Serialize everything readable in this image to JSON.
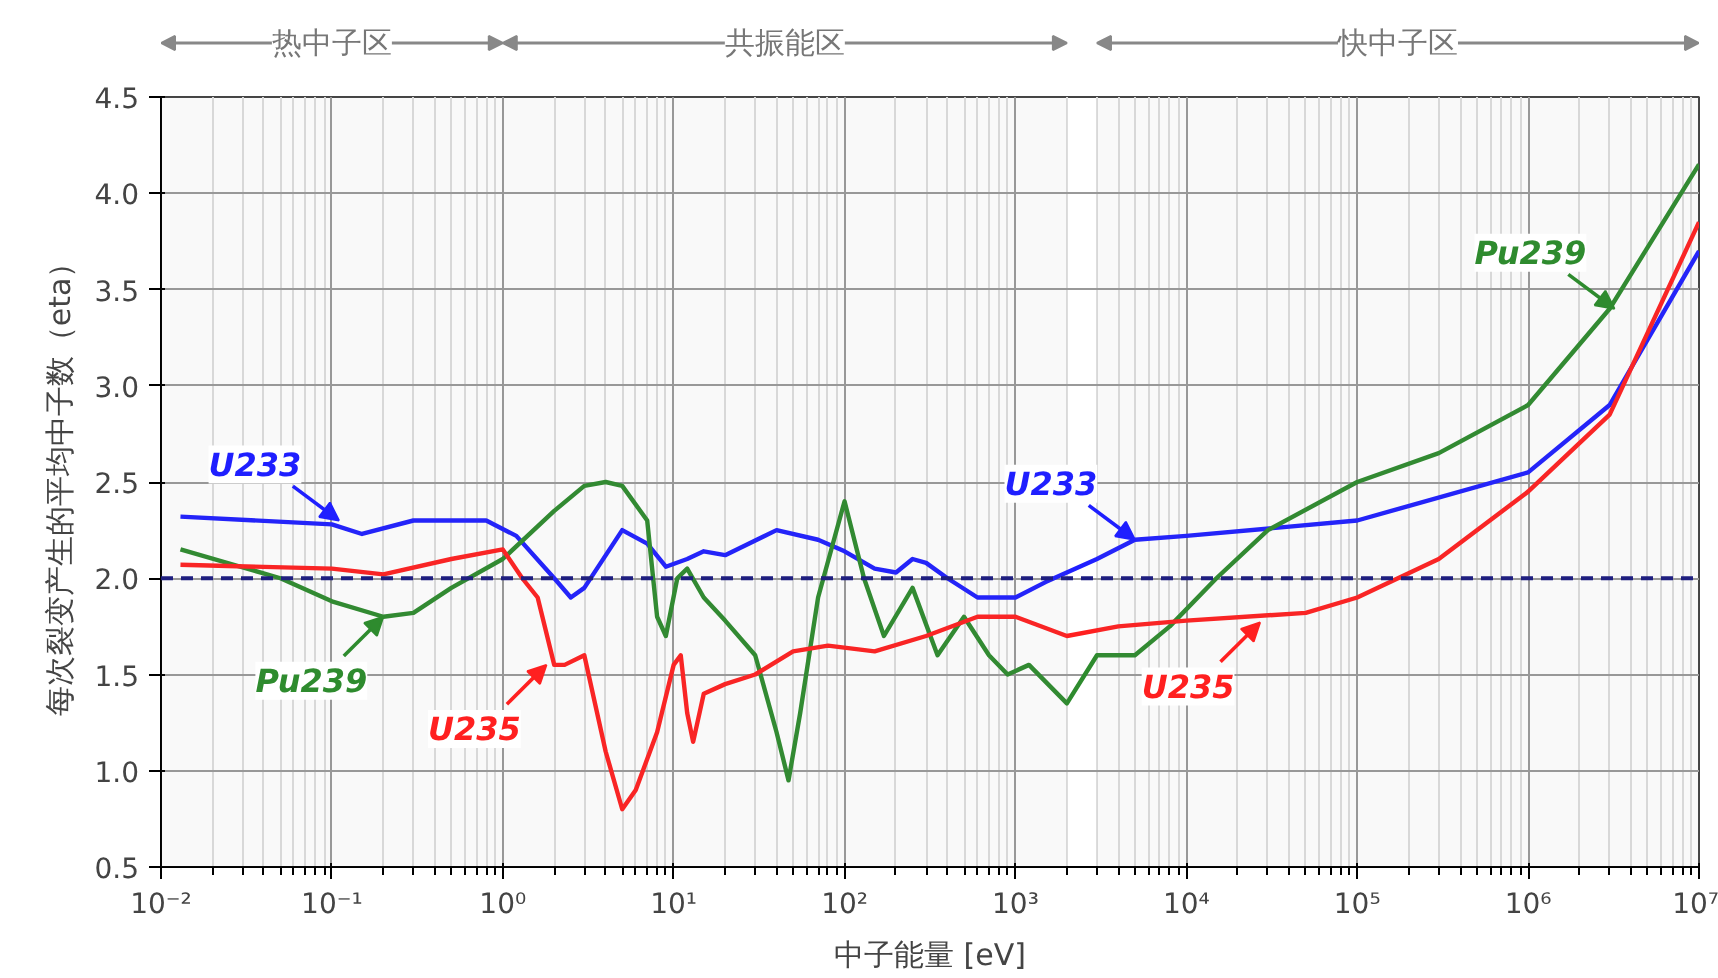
{
  "chart_data": {
    "type": "line",
    "xlabel": "中子能量 [eV]",
    "ylabel": "每次裂变产生的平均中子数（eta）",
    "log": "x",
    "grid": true,
    "line_style": "solid",
    "marker": "none",
    "xlim": [
      0.01,
      10000000
    ],
    "ylim": [
      0.5,
      4.5
    ],
    "xticks": [
      {
        "value": 0.01,
        "label": "10⁻²"
      },
      {
        "value": 0.1,
        "label": "10⁻¹"
      },
      {
        "value": 1,
        "label": "10⁰"
      },
      {
        "value": 10,
        "label": "10¹"
      },
      {
        "value": 100,
        "label": "10²"
      },
      {
        "value": 1000,
        "label": "10³"
      },
      {
        "value": 10000,
        "label": "10⁴"
      },
      {
        "value": 100000,
        "label": "10⁵"
      },
      {
        "value": 1000000,
        "label": "10⁶"
      },
      {
        "value": 10000000,
        "label": "10⁷"
      }
    ],
    "yticks": [
      {
        "value": 0.5,
        "label": "0.5"
      },
      {
        "value": 1.0,
        "label": "1.0"
      },
      {
        "value": 1.5,
        "label": "1.5"
      },
      {
        "value": 2.0,
        "label": "2.0"
      },
      {
        "value": 2.5,
        "label": "2.5"
      },
      {
        "value": 3.0,
        "label": "3.0"
      },
      {
        "value": 3.5,
        "label": "3.5"
      },
      {
        "value": 4.0,
        "label": "4.0"
      },
      {
        "value": 4.5,
        "label": "4.5"
      }
    ],
    "series": [
      {
        "color": "#1f1fff",
        "x": [
          0.013,
          0.1,
          0.15,
          0.3,
          0.8,
          1.2,
          2,
          2.5,
          3,
          5,
          7,
          9,
          12,
          15,
          20,
          40,
          70,
          100,
          150,
          200,
          250,
          300,
          400,
          600,
          1000,
          1500,
          3000,
          5000,
          10000,
          100000,
          1000000,
          3000000,
          10000000
        ],
        "values": [
          2.32,
          2.28,
          2.23,
          2.3,
          2.3,
          2.22,
          2.0,
          1.9,
          1.95,
          2.25,
          2.18,
          2.06,
          2.1,
          2.14,
          2.12,
          2.25,
          2.2,
          2.14,
          2.05,
          2.03,
          2.1,
          2.08,
          2.0,
          1.9,
          1.9,
          1.98,
          2.1,
          2.2,
          2.22,
          2.3,
          2.55,
          2.9,
          3.7
        ]
      },
      {
        "color": "#2e8b2e",
        "x": [
          0.013,
          0.05,
          0.1,
          0.2,
          0.3,
          0.5,
          1,
          2,
          3,
          4,
          5,
          7,
          8,
          9,
          10.5,
          12,
          15,
          20,
          30,
          40,
          47,
          55,
          70,
          100,
          130,
          170,
          250,
          350,
          500,
          700,
          900,
          1200,
          2000,
          3000,
          5000,
          8000,
          15000,
          30000,
          100000,
          300000,
          1000000,
          3000000,
          10000000
        ],
        "values": [
          2.15,
          2.0,
          1.88,
          1.8,
          1.82,
          1.95,
          2.1,
          2.35,
          2.48,
          2.5,
          2.48,
          2.3,
          1.8,
          1.7,
          2.0,
          2.05,
          1.9,
          1.78,
          1.6,
          1.2,
          0.95,
          1.3,
          1.9,
          2.4,
          2.0,
          1.7,
          1.95,
          1.6,
          1.8,
          1.6,
          1.5,
          1.55,
          1.35,
          1.6,
          1.6,
          1.75,
          2.0,
          2.25,
          2.5,
          2.65,
          2.9,
          3.4,
          4.15
        ]
      },
      {
        "color": "#ff2020",
        "x": [
          0.013,
          0.1,
          0.2,
          0.5,
          1,
          1.3,
          1.6,
          2,
          2.3,
          3,
          4,
          5,
          6,
          8,
          10,
          11,
          12,
          13,
          15,
          20,
          30,
          50,
          80,
          150,
          300,
          600,
          1000,
          2000,
          4000,
          10000,
          50000,
          100000,
          300000,
          1000000,
          3000000,
          10000000
        ],
        "values": [
          2.07,
          2.05,
          2.02,
          2.1,
          2.15,
          2.0,
          1.9,
          1.55,
          1.55,
          1.6,
          1.1,
          0.8,
          0.9,
          1.2,
          1.55,
          1.6,
          1.3,
          1.15,
          1.4,
          1.45,
          1.5,
          1.62,
          1.65,
          1.62,
          1.7,
          1.8,
          1.8,
          1.7,
          1.75,
          1.78,
          1.82,
          1.9,
          2.1,
          2.45,
          2.85,
          3.85
        ]
      }
    ],
    "ref_lines": [
      {
        "axis": "y",
        "value": 2.0,
        "color": "#1a1a80",
        "line_style": "dashed"
      }
    ],
    "bands": [
      {
        "axis": "x",
        "from": 0.01,
        "to": 1,
        "label": "热中子区"
      },
      {
        "axis": "x",
        "from": 1,
        "to": 2000,
        "label": "共振能区"
      },
      {
        "axis": "x",
        "from": 3000,
        "to": 10000000,
        "label": "快中子区"
      }
    ],
    "annotations": [
      {
        "text": "U233",
        "x": 0.11,
        "y": 2.3
      },
      {
        "text": "Pu239",
        "x": 0.2,
        "y": 1.8
      },
      {
        "text": "U235",
        "x": 1.8,
        "y": 1.55
      },
      {
        "text": "U233",
        "x": 5000,
        "y": 2.2
      },
      {
        "text": "U235",
        "x": 27000,
        "y": 1.77
      },
      {
        "text": "Pu239",
        "x": 3200000,
        "y": 3.4
      }
    ]
  }
}
